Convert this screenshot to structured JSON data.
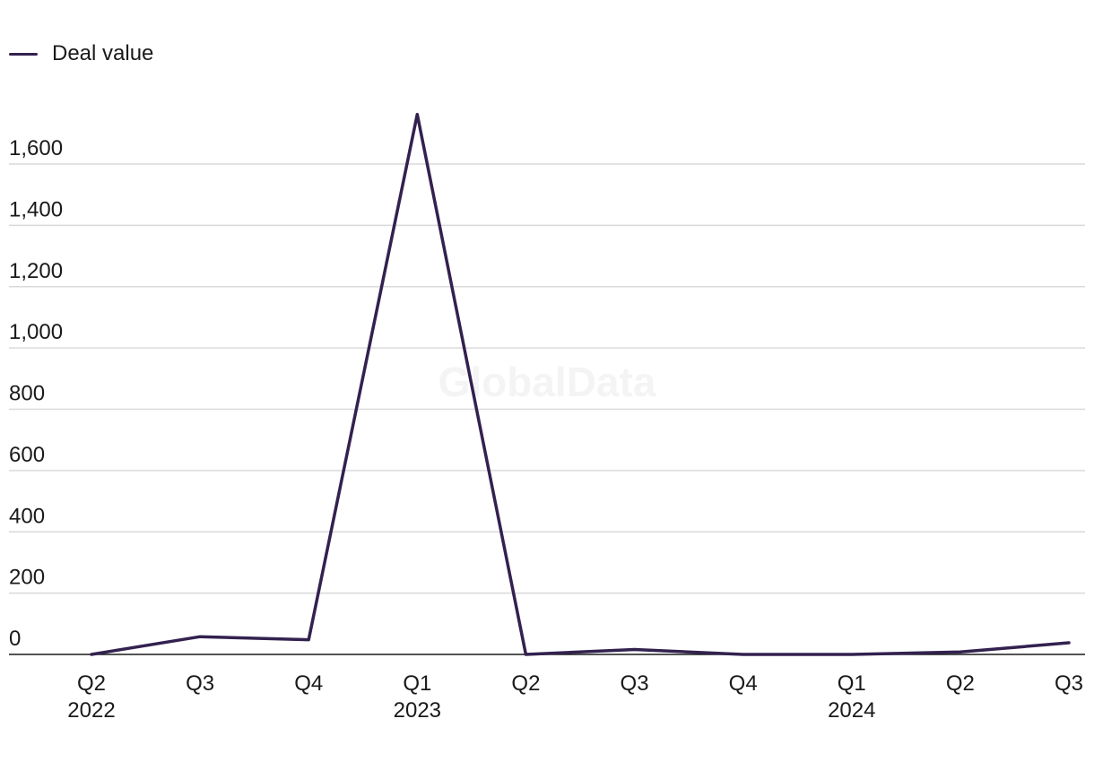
{
  "legend": {
    "label": "Deal value"
  },
  "watermark": "GlobalData",
  "colors": {
    "line": "#33214f",
    "grid": "#d9d9d9",
    "axis": "#1a1a1a"
  },
  "chart_data": {
    "type": "line",
    "categories": [
      "Q2\n2022",
      "Q3",
      "Q4",
      "Q1\n2023",
      "Q2",
      "Q3",
      "Q4",
      "Q1\n2024",
      "Q2",
      "Q3"
    ],
    "series": [
      {
        "name": "Deal value",
        "values": [
          0,
          58,
          48,
          1762,
          0,
          16,
          0,
          0,
          8,
          38
        ]
      }
    ],
    "yticks": [
      "0",
      "200",
      "400",
      "600",
      "800",
      "1,000",
      "1,200",
      "1,400",
      "1,600"
    ],
    "ylim": [
      0,
      1600
    ],
    "grid": true,
    "legend_position": "top-left"
  }
}
